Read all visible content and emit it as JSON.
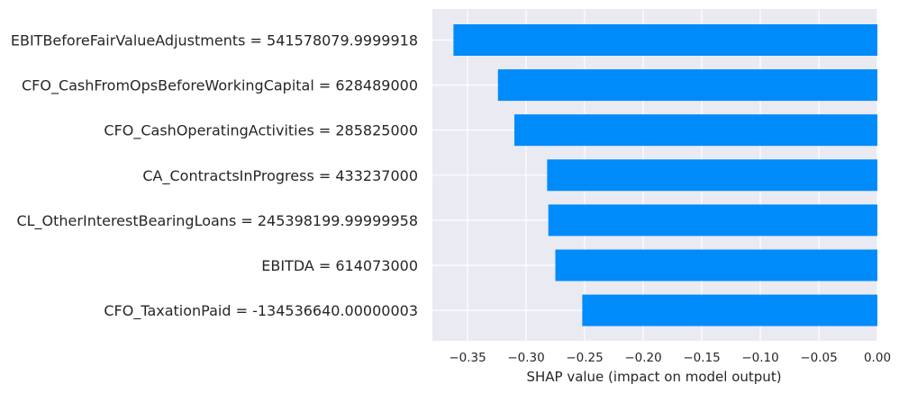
{
  "chart_data": {
    "type": "bar",
    "orientation": "horizontal",
    "categories": [
      "EBITBeforeFairValueAdjustments = 541578079.9999918",
      "CFO_CashFromOpsBeforeWorkingCapital = 628489000",
      "CFO_CashOperatingActivities = 285825000",
      "CA_ContractsInProgress = 433237000",
      "CL_OtherInterestBearingLoans = 245398199.99999958",
      "EBITDA = 614073000",
      "CFO_TaxationPaid = -134536640.00000003"
    ],
    "values": [
      -0.362,
      -0.324,
      -0.31,
      -0.282,
      -0.281,
      -0.275,
      -0.252
    ],
    "title": "",
    "xlabel": "SHAP value (impact on model output)",
    "ylabel": "",
    "xlim": [
      -0.38,
      0.0
    ],
    "xticks": [
      -0.35,
      -0.3,
      -0.25,
      -0.2,
      -0.15,
      -0.1,
      -0.05,
      0.0
    ],
    "xtick_labels": [
      "−0.35",
      "−0.30",
      "−0.25",
      "−0.20",
      "−0.15",
      "−0.10",
      "−0.05",
      "0.00"
    ],
    "grid": true,
    "colors": {
      "bar": "#008bfb",
      "plot_background": "#eaeaf2",
      "grid": "#ffffff",
      "text": "#262626"
    }
  }
}
